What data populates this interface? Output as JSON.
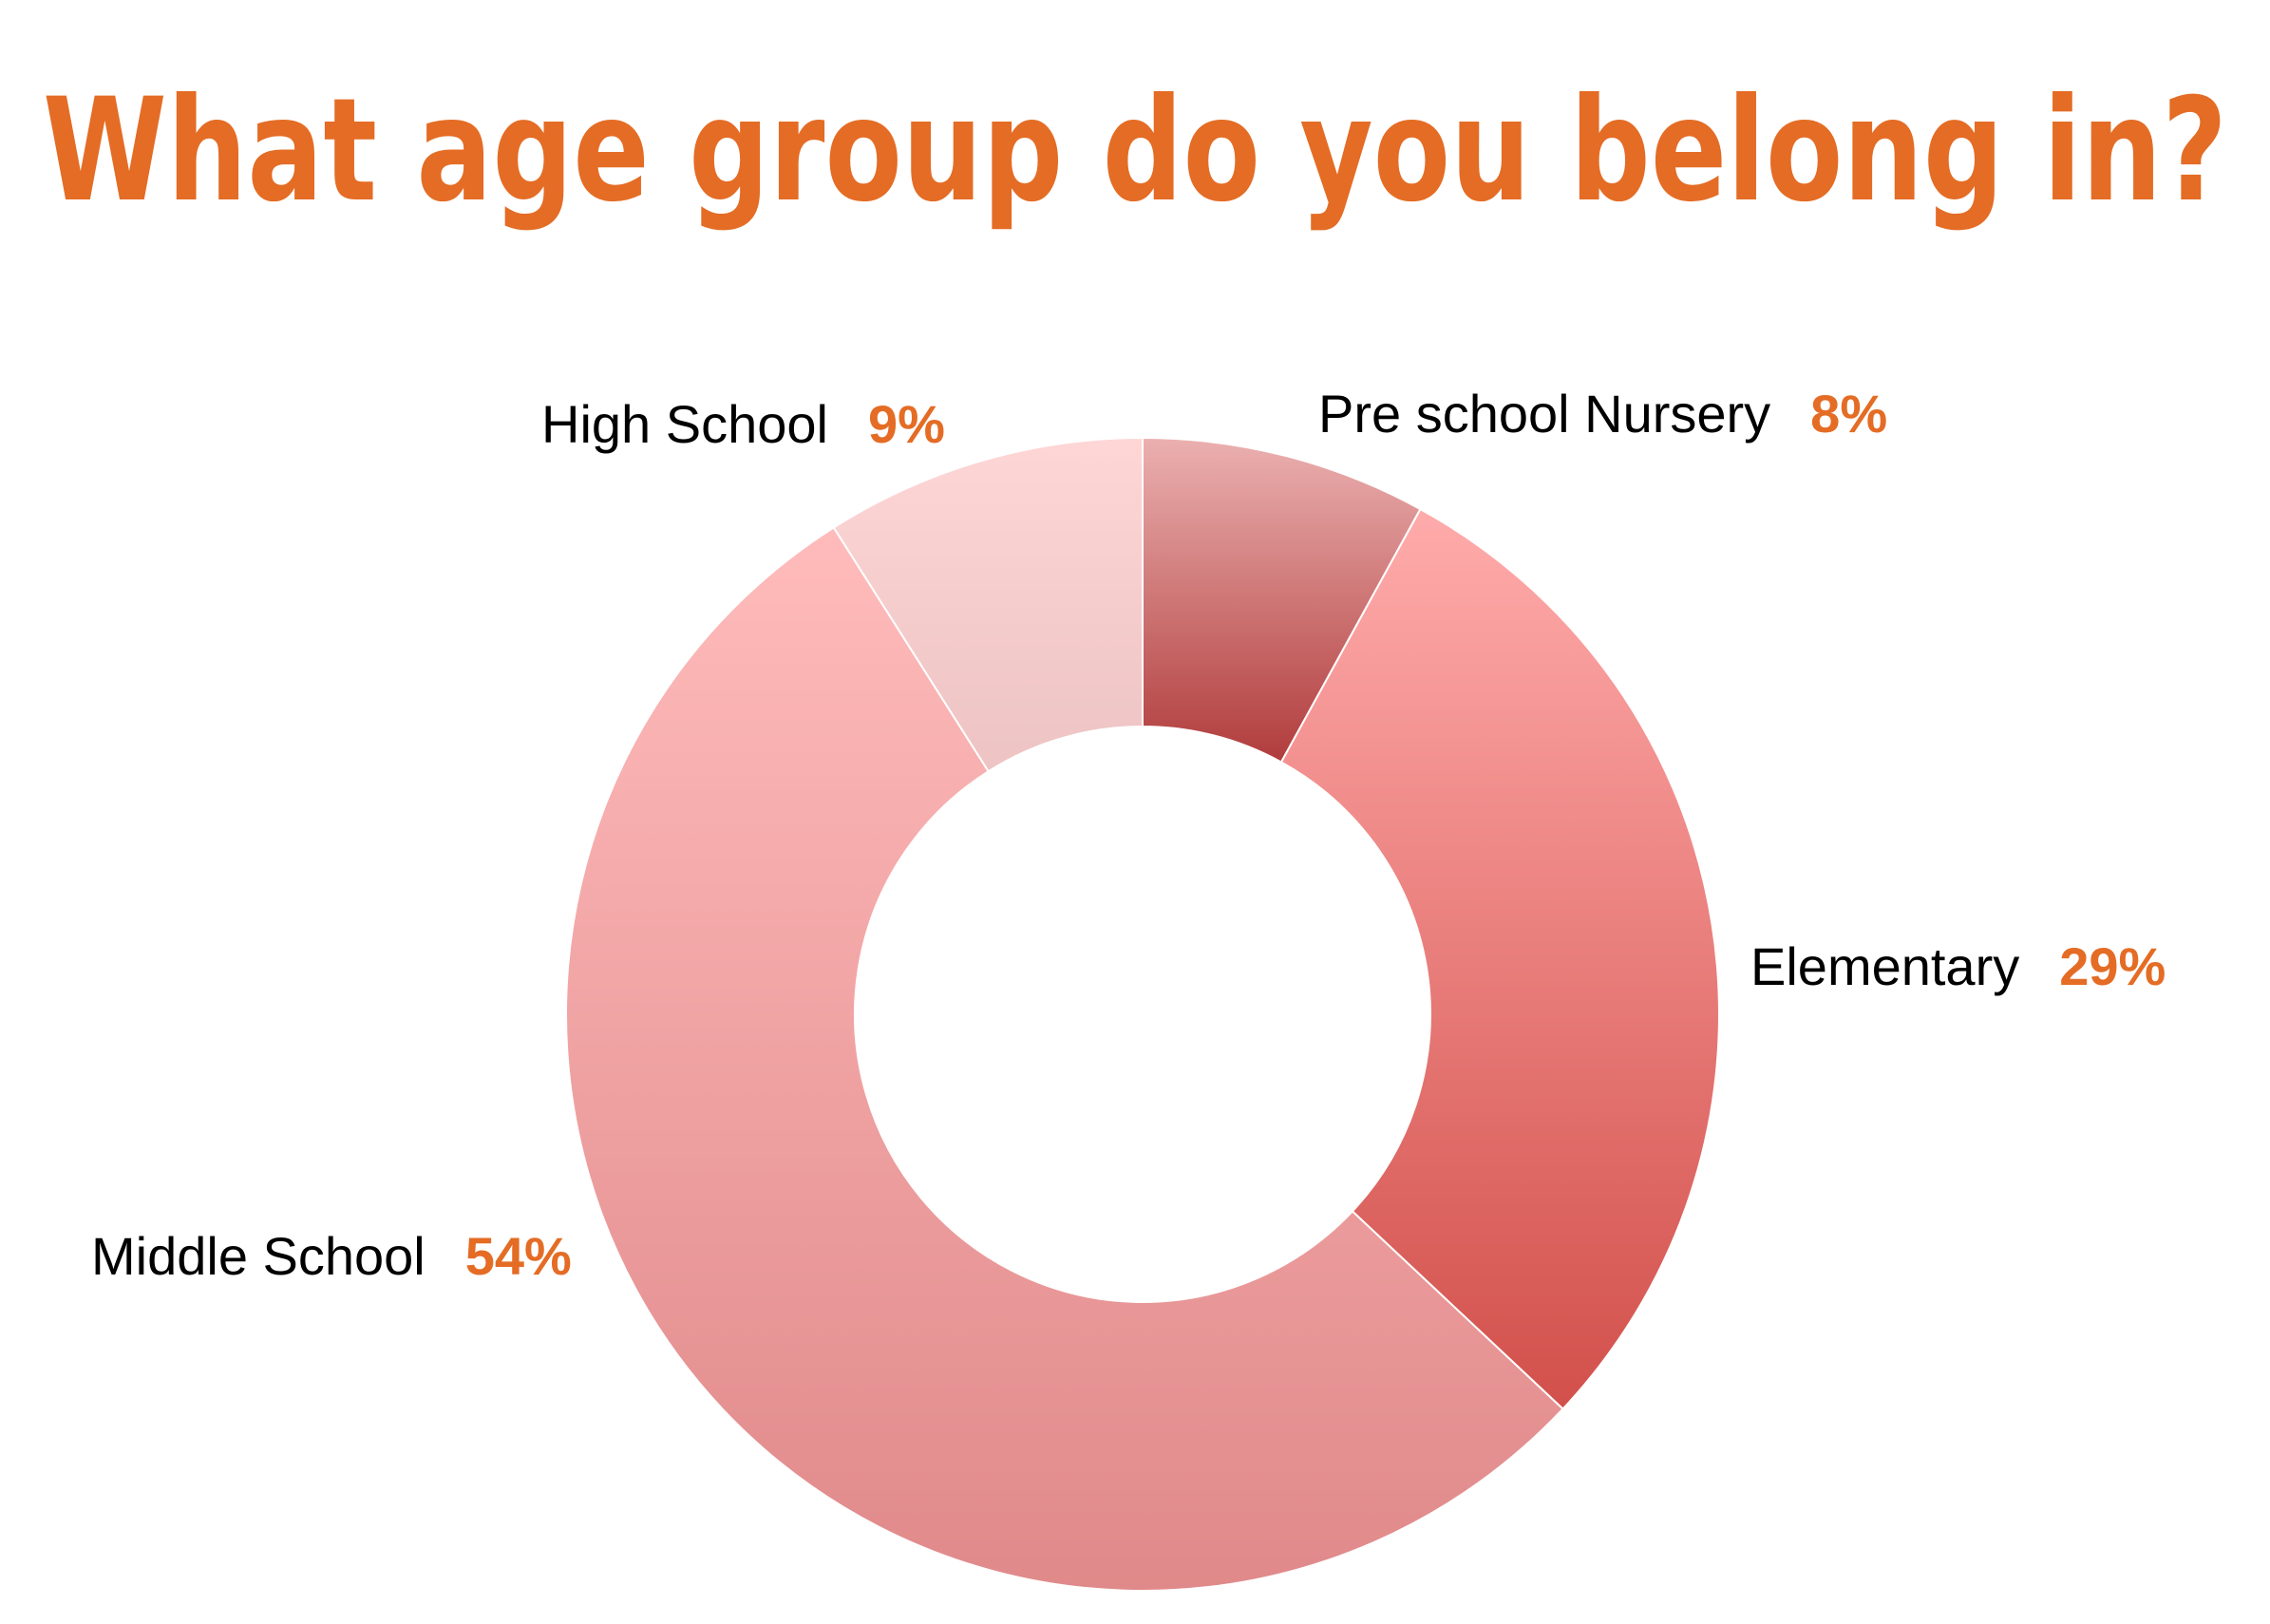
{
  "chart_data": {
    "type": "pie",
    "style": "donut",
    "title": "What age group do you belong in?",
    "categories": [
      "Pre school Nursery",
      "Elementary",
      "Middle School",
      "High School"
    ],
    "values": [
      8,
      29,
      54,
      9
    ],
    "value_labels": [
      "8%",
      "29%",
      "54%",
      "9%"
    ],
    "legend": "none",
    "colors": {
      "title": "#E46C25",
      "value_label": "#E46C25",
      "category_label": "#000000",
      "slices": [
        {
          "top": "#EBB0B0",
          "bottom": "#B13C3C"
        },
        {
          "top": "#FFABAB",
          "bottom": "#D2504B"
        },
        {
          "top": "#FFBBBB",
          "bottom": "#E0898A"
        },
        {
          "top": "#FED6D6",
          "bottom": "#EDC3C3"
        }
      ]
    }
  }
}
